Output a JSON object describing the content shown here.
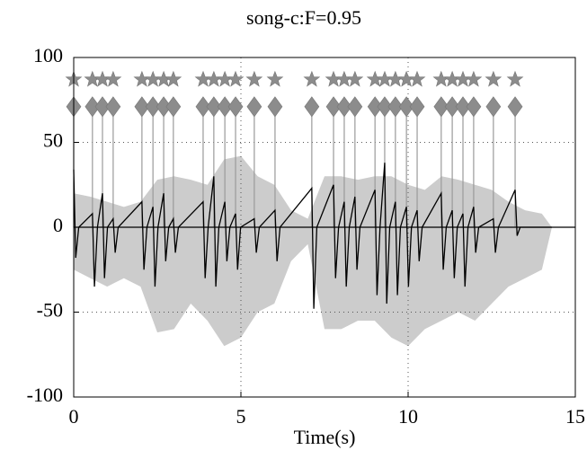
{
  "chart_data": {
    "type": "event-trace",
    "title": "song-c:F=0.95",
    "x_label": "Time(s)",
    "xlim": [
      0,
      15
    ],
    "xticks": [
      0,
      5,
      10,
      15
    ],
    "ylim": [
      -100,
      100
    ],
    "yticks": [
      -100,
      -50,
      0,
      50,
      100
    ],
    "grid": true,
    "envelope": {
      "color": "#cccccc",
      "x": [
        0,
        0.5,
        1,
        1.5,
        2,
        2.5,
        3,
        3.5,
        4,
        4.5,
        5,
        5.5,
        6,
        6.5,
        7,
        7.5,
        8,
        8.5,
        9,
        9.5,
        10,
        10.5,
        11,
        11.5,
        12,
        12.5,
        13,
        13.5,
        14,
        14.3
      ],
      "upper": [
        20,
        18,
        15,
        12,
        15,
        28,
        30,
        28,
        25,
        40,
        42,
        30,
        25,
        10,
        5,
        30,
        30,
        28,
        30,
        30,
        25,
        22,
        30,
        28,
        25,
        22,
        15,
        10,
        8,
        0
      ],
      "lower": [
        -25,
        -30,
        -35,
        -30,
        -35,
        -62,
        -60,
        -45,
        -55,
        -70,
        -65,
        -50,
        -45,
        -20,
        -10,
        -60,
        -60,
        -55,
        -55,
        -65,
        -70,
        -60,
        -55,
        -50,
        -55,
        -45,
        -35,
        -30,
        -25,
        0
      ]
    },
    "trace": {
      "color": "#000000",
      "x": [
        0,
        0.06,
        0.15,
        0.56,
        0.62,
        0.71,
        0.86,
        0.92,
        1.01,
        1.18,
        1.24,
        1.33,
        2.04,
        2.1,
        2.19,
        2.37,
        2.43,
        2.52,
        2.69,
        2.75,
        2.84,
        2.98,
        3.04,
        3.13,
        3.87,
        3.93,
        4.02,
        4.19,
        4.25,
        4.34,
        4.52,
        4.58,
        4.67,
        4.84,
        4.9,
        4.99,
        5.4,
        5.46,
        5.55,
        6.02,
        6.08,
        6.17,
        7.12,
        7.18,
        7.27,
        7.77,
        7.83,
        7.92,
        8.09,
        8.15,
        8.24,
        8.41,
        8.47,
        8.56,
        9.01,
        9.07,
        9.16,
        9.3,
        9.36,
        9.45,
        9.62,
        9.68,
        9.77,
        9.95,
        10.01,
        10.1,
        10.27,
        10.33,
        10.42,
        10.99,
        11.05,
        11.14,
        11.32,
        11.38,
        11.47,
        11.64,
        11.7,
        11.79,
        11.96,
        12.02,
        12.11,
        12.55,
        12.61,
        12.7,
        13.2,
        13.26,
        13.35,
        14.3
      ],
      "values": [
        34,
        -18,
        0,
        8,
        -35,
        0,
        20,
        -30,
        0,
        5,
        -15,
        0,
        15,
        -25,
        0,
        12,
        -35,
        0,
        20,
        -20,
        0,
        5,
        -15,
        0,
        15,
        -30,
        0,
        30,
        -35,
        0,
        15,
        -20,
        0,
        8,
        -25,
        0,
        5,
        -15,
        0,
        10,
        -20,
        0,
        23,
        -48,
        0,
        25,
        -30,
        0,
        15,
        -35,
        0,
        18,
        -25,
        0,
        22,
        -40,
        0,
        38,
        -45,
        0,
        15,
        -40,
        0,
        12,
        -35,
        0,
        10,
        -20,
        0,
        20,
        -25,
        0,
        10,
        -30,
        0,
        8,
        -35,
        0,
        12,
        -15,
        0,
        5,
        -15,
        0,
        22,
        -5,
        0,
        0
      ]
    },
    "series": [
      {
        "marker": "star",
        "color": "#8c8c8c",
        "x": [
          0,
          0.56,
          0.86,
          1.18,
          2.04,
          2.37,
          2.69,
          2.98,
          3.87,
          4.19,
          4.52,
          4.84,
          5.4,
          6.02,
          7.12,
          7.77,
          8.09,
          8.41,
          9.01,
          9.3,
          9.62,
          9.95,
          10.27,
          10.99,
          11.32,
          11.64,
          11.96,
          12.55,
          13.2
        ],
        "values": [
          87,
          87,
          87,
          87,
          87,
          87,
          87,
          87,
          87,
          87,
          87,
          87,
          87,
          87,
          87,
          87,
          87,
          87,
          87,
          87,
          87,
          87,
          87,
          87,
          87,
          87,
          87,
          87,
          87
        ]
      },
      {
        "marker": "diamond",
        "color": "#8c8c8c",
        "x": [
          0,
          0.56,
          0.86,
          1.18,
          2.04,
          2.37,
          2.69,
          2.98,
          3.87,
          4.19,
          4.52,
          4.84,
          5.4,
          6.02,
          7.12,
          7.77,
          8.09,
          8.41,
          9.01,
          9.3,
          9.62,
          9.95,
          10.27,
          10.99,
          11.32,
          11.64,
          11.96,
          12.55,
          13.2
        ],
        "values": [
          71,
          71,
          71,
          71,
          71,
          71,
          71,
          71,
          71,
          71,
          71,
          71,
          71,
          71,
          71,
          71,
          71,
          71,
          71,
          71,
          71,
          71,
          71,
          71,
          71,
          71,
          71,
          71,
          71
        ]
      }
    ]
  }
}
